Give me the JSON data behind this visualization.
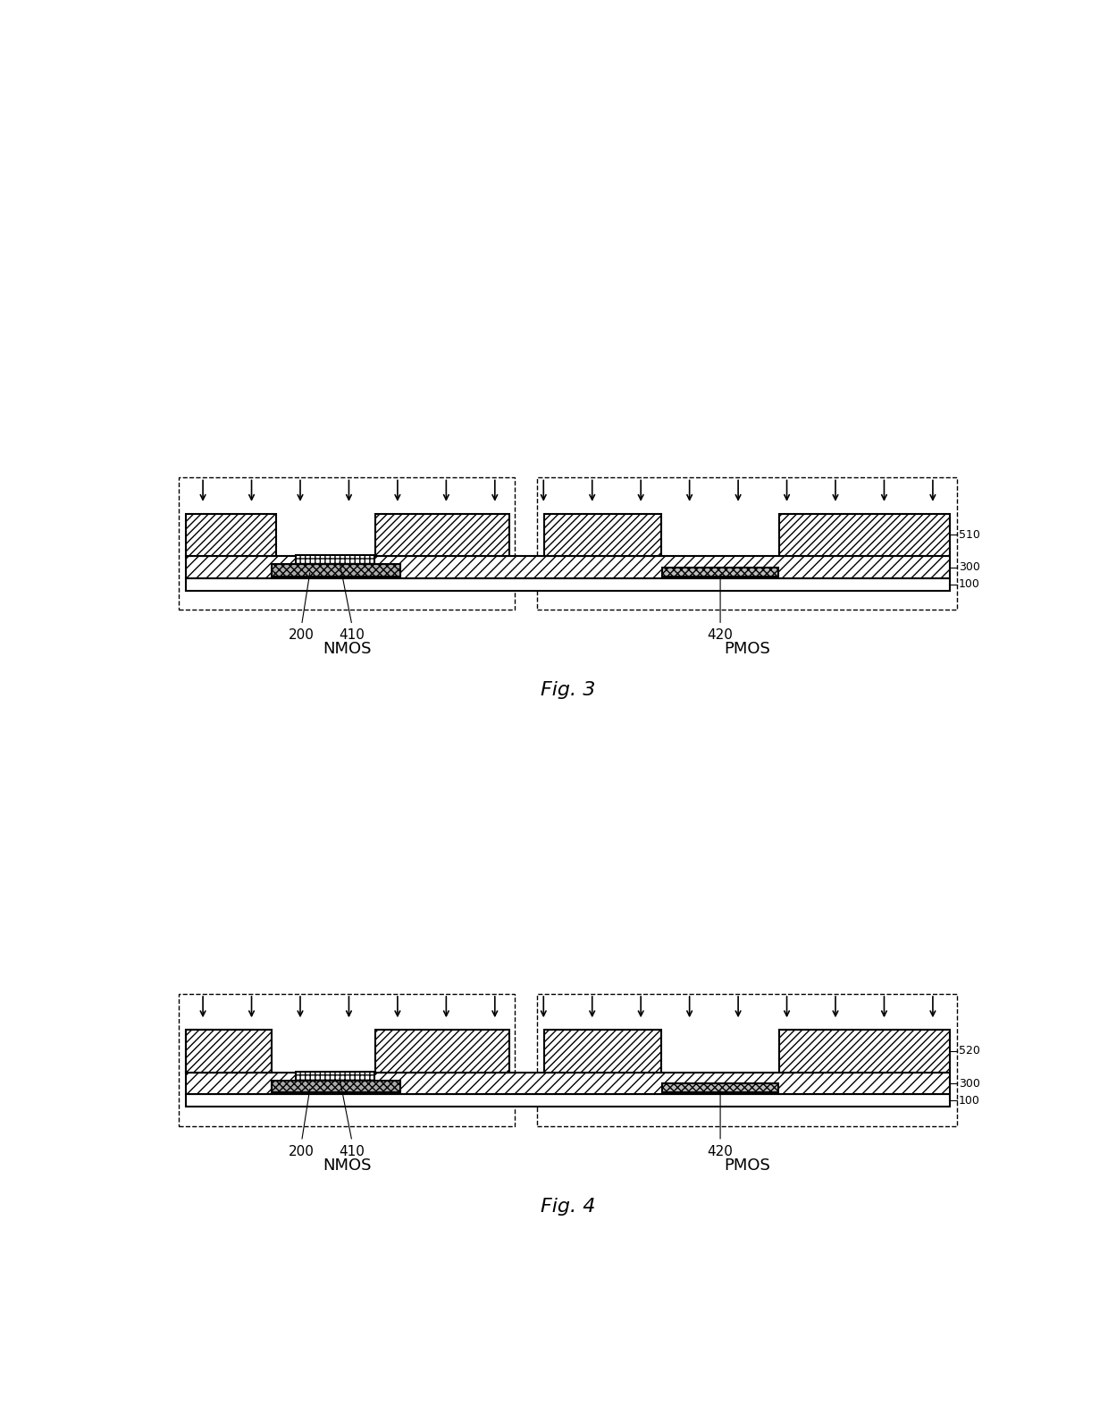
{
  "fig_width": 12.4,
  "fig_height": 15.73,
  "bg_color": "#ffffff",
  "line_color": "#000000",
  "fig3": {
    "label": "Fig. 3",
    "layer_top_label": "510",
    "layer_buf_label": "300",
    "layer_sub_label": "100"
  },
  "fig4": {
    "label": "Fig. 4",
    "layer_top_label": "520",
    "layer_buf_label": "300",
    "layer_sub_label": "100"
  }
}
